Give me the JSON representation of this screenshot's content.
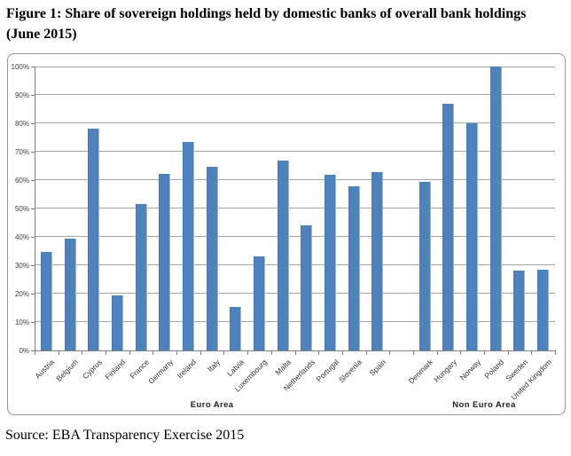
{
  "figure": {
    "title_line1": "Figure 1: Share of sovereign holdings held by domestic banks of overall bank holdings",
    "title_line2": "(June 2015)",
    "source": "Source: EBA Transparency Exercise 2015"
  },
  "chart_data": {
    "type": "bar",
    "title": "Share of sovereign holdings held by domestic banks of overall bank holdings (June 2015)",
    "xlabel": "",
    "ylabel": "",
    "ylim": [
      0,
      100
    ],
    "ytick_step": 10,
    "ytick_labels": [
      "0%",
      "10%",
      "20%",
      "30%",
      "40%",
      "50%",
      "60%",
      "70%",
      "80%",
      "90%",
      "100%"
    ],
    "grid": true,
    "legend": false,
    "bar_color": "#4F81BD",
    "gridline_color": "#a6a6a6",
    "axis_color": "#808080",
    "group_gap_slots": 1,
    "groups": [
      {
        "label": "Euro Area",
        "categories": [
          "Austria",
          "Belgium",
          "Cyprus",
          "Finland",
          "France",
          "Germany",
          "Ireland",
          "Italy",
          "Latvia",
          "Luxembourg",
          "Malta",
          "Netherlands",
          "Portugal",
          "Slovenia",
          "Spain"
        ],
        "values": [
          34.8,
          39.4,
          78.1,
          19.3,
          51.5,
          62.3,
          73.5,
          64.8,
          15.3,
          33.2,
          66.8,
          44.0,
          61.9,
          57.8,
          62.9
        ]
      },
      {
        "label": "Non Euro Area",
        "categories": [
          "Denmark",
          "Hungary",
          "Norway",
          "Poland",
          "Sweden",
          "United Kingdom"
        ],
        "values": [
          59.4,
          86.8,
          80.0,
          100.0,
          28.0,
          28.4
        ]
      }
    ]
  }
}
